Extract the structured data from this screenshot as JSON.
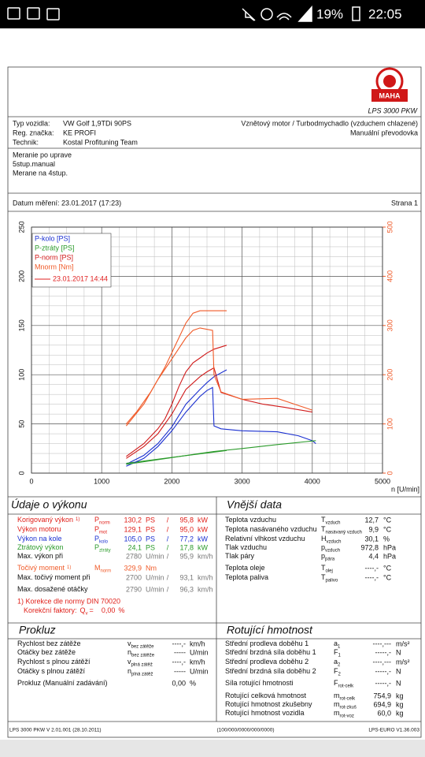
{
  "status_bar": {
    "battery": "19%",
    "time": "22:05"
  },
  "header": {
    "logo_text": "MAHA",
    "product": "LPS 3000 PKW"
  },
  "vehicle": {
    "left": [
      [
        "Typ vozidla:",
        "VW Golf 1,9TDi 90PS"
      ],
      [
        "Reg. značka:",
        "KE PROFI"
      ],
      [
        "Technik:",
        "Kostal Profituning Team"
      ]
    ],
    "right": [
      "Vznětový motor / Turbodmychadlo (vzduchem chlazené)",
      "Manuální převodovka"
    ]
  },
  "notes": [
    "Meranie po uprave",
    "5stup.manual",
    "Merane na 4stup."
  ],
  "measurement": {
    "date": "Datum měření: 23.01.2017 (17:23)",
    "page": "Strana 1"
  },
  "chart_data": {
    "type": "line",
    "xlabel": "n [U/min]",
    "xlim": [
      0,
      5000
    ],
    "xticks": [
      0,
      1000,
      2000,
      3000,
      4000,
      5000
    ],
    "ylim": [
      0,
      250
    ],
    "yticks": [
      0,
      50,
      100,
      150,
      200,
      250
    ],
    "y2lim": [
      0,
      500
    ],
    "y2ticks": [
      0,
      100,
      200,
      300,
      400,
      500
    ],
    "y2color": "#f05a28",
    "grid": true,
    "minor_grid": {
      "x": 4,
      "y": 5
    },
    "legend": "upper left",
    "legend_run": {
      "label": "23.01.2017 14:44",
      "color": "#e02020"
    },
    "series": [
      {
        "name": "P-kolo [PS]",
        "color": "#1a2fd0",
        "x": [
          1350,
          1600,
          1800,
          2000,
          2200,
          2400,
          2500,
          2600,
          2780
        ],
        "values": [
          9,
          18,
          30,
          47,
          70,
          85,
          92,
          98,
          105
        ]
      },
      {
        "name": "P-ztráty [PS]",
        "color": "#2a9a2a",
        "x": [
          1350,
          2000,
          2780
        ],
        "values": [
          10,
          16,
          23
        ]
      },
      {
        "name": "P-norm [PS]",
        "color": "#d01818",
        "x": [
          1350,
          1600,
          1800,
          1900,
          2000,
          2100,
          2200,
          2300,
          2400,
          2500,
          2600,
          2780
        ],
        "values": [
          17,
          30,
          45,
          55,
          70,
          88,
          103,
          112,
          117,
          122,
          126,
          130
        ]
      },
      {
        "name": "Mnorm [Nm]",
        "color": "#f05a28",
        "axis": "y2",
        "x": [
          1350,
          1500,
          1700,
          1900,
          2000,
          2100,
          2200,
          2300,
          2400,
          2600,
          2780
        ],
        "values": [
          100,
          125,
          165,
          215,
          245,
          275,
          305,
          325,
          330,
          330,
          330
        ]
      },
      {
        "color": "#1a2fd0",
        "x": [
          1350,
          1600,
          1800,
          2000,
          2200,
          2400,
          2500,
          2580,
          2600,
          2700,
          3000,
          3500,
          3800,
          4000,
          4050
        ],
        "values": [
          7,
          15,
          27,
          43,
          62,
          78,
          84,
          87,
          48,
          45,
          43,
          42,
          38,
          33,
          30
        ]
      },
      {
        "color": "#2a9a2a",
        "x": [
          1350,
          2600,
          3000,
          3500,
          4050
        ],
        "values": [
          9,
          22,
          25,
          29,
          33
        ]
      },
      {
        "color": "#d01818",
        "x": [
          1350,
          1600,
          1800,
          2000,
          2200,
          2400,
          2500,
          2600,
          2700,
          3000,
          3300,
          3600,
          4000
        ],
        "values": [
          15,
          27,
          40,
          60,
          85,
          98,
          103,
          107,
          82,
          75,
          70,
          67,
          62
        ]
      },
      {
        "color": "#f05a28",
        "axis": "y2",
        "x": [
          1350,
          1600,
          1800,
          2000,
          2200,
          2300,
          2400,
          2580,
          2600,
          2700,
          3000,
          3500,
          4000
        ],
        "values": [
          96,
          140,
          190,
          232,
          275,
          290,
          295,
          290,
          200,
          165,
          150,
          152,
          128
        ]
      }
    ]
  },
  "panels": [
    {
      "title": "Údaje o výkonu",
      "rows": [
        {
          "label": "Korigovaný výkon",
          "note": "1)",
          "symbol": [
            "P",
            "norm"
          ],
          "cells": [
            "130,2",
            "PS",
            "/",
            "95,8",
            "kW"
          ],
          "color": "#e0201a"
        },
        {
          "label": "Výkon motoru",
          "symbol": [
            "P",
            "mot"
          ],
          "cells": [
            "129,1",
            "PS",
            "/",
            "95,0",
            "kW"
          ],
          "color": "#e0201a"
        },
        {
          "label": "Výkon na kole",
          "symbol": [
            "P",
            "kolo"
          ],
          "cells": [
            "105,0",
            "PS",
            "/",
            "77,2",
            "kW"
          ],
          "color": "#1a2fd0"
        },
        {
          "label": "Ztrátový výkon",
          "symbol": [
            "P",
            "ztráty"
          ],
          "cells": [
            "24,1",
            "PS",
            "/",
            "17,8",
            "kW"
          ],
          "color": "#2a9a2a"
        },
        {
          "label": "Max. výkon při",
          "cells": [
            "2780",
            "U/min",
            "/",
            "95,9",
            "km/h"
          ],
          "value_color": "#777777"
        },
        {
          "label": "Točivý moment",
          "note": "1)",
          "symbol": [
            "M",
            "norm"
          ],
          "cells": [
            "329,9",
            "Nm"
          ],
          "color": "#f05a28"
        },
        {
          "label": "Max. točivý moment při",
          "cells": [
            "2700",
            "U/min",
            "/",
            "93,1",
            "km/h"
          ],
          "value_color": "#777777"
        },
        {
          "label": "Max. dosažené otáčky",
          "cells": [
            "2790",
            "U/min",
            "/",
            "96,3",
            "km/h"
          ],
          "value_color": "#777777"
        }
      ]
    },
    {
      "title": "Vnější data",
      "rows": [
        {
          "label": "Teplota vzduchu",
          "symbol": [
            "T",
            "vzduch"
          ],
          "cells": [
            "12,7",
            "°C"
          ]
        },
        {
          "label": "Teplota nasávaného vzduchu",
          "symbol": [
            "T",
            "nasávaný vzduch"
          ],
          "cells": [
            "9,9",
            "°C"
          ]
        },
        {
          "label": "Relativní vlhkost vzduchu",
          "symbol": [
            "H",
            "vzduch"
          ],
          "cells": [
            "30,1",
            "%"
          ]
        },
        {
          "label": "Tlak vzduchu",
          "symbol": [
            "p",
            "vzduch"
          ],
          "cells": [
            "972,8",
            "hPa"
          ]
        },
        {
          "label": "Tlak páry",
          "symbol": [
            "p",
            "pára"
          ],
          "cells": [
            "4,4",
            "hPa"
          ]
        },
        {
          "label": "Teplota oleje",
          "symbol": [
            "T",
            "olej"
          ],
          "cells": [
            "----,-",
            "°C"
          ]
        },
        {
          "label": "Teplota paliva",
          "symbol": [
            "T",
            "palivo"
          ],
          "cells": [
            "----,-",
            "°C"
          ]
        }
      ]
    },
    {
      "title": "Prokluz",
      "rows": [
        {
          "label": "Rychlost bez zátěže",
          "symbol": [
            "v",
            "bez zátěže"
          ],
          "cells": [
            "----,-",
            "km/h"
          ]
        },
        {
          "label": "Otáčky bez zátěže",
          "symbol": [
            "n",
            "bez zátěže"
          ],
          "cells": [
            "-----",
            "U/min"
          ]
        },
        {
          "label": "Rychlost s plnou zátěží",
          "symbol": [
            "v",
            "plná zátěž"
          ],
          "cells": [
            "----,-",
            "km/h"
          ]
        },
        {
          "label": "Otáčky s plnou zátěží",
          "symbol": [
            "n",
            "plná zátěž"
          ],
          "cells": [
            "-----",
            "U/min"
          ]
        },
        {
          "label": "Prokluz (Manuální zadávání)",
          "cells": [
            "0,00",
            "%"
          ]
        }
      ]
    },
    {
      "title": "Rotující hmotnost",
      "rows": [
        {
          "label": "Střední prodleva doběhu 1",
          "symbol": [
            "a",
            "1"
          ],
          "cells": [
            "----,---",
            "m/s²"
          ]
        },
        {
          "label": "Střední brzdná síla doběhu 1",
          "symbol": [
            "F",
            "1"
          ],
          "cells": [
            "-----,-",
            "N"
          ]
        },
        {
          "label": "Střední prodleva doběhu 2",
          "symbol": [
            "a",
            "2"
          ],
          "cells": [
            "----,---",
            "m/s²"
          ]
        },
        {
          "label": "Střední brzdná síla doběhu 2",
          "symbol": [
            "F",
            "2"
          ],
          "cells": [
            "-----,-",
            "N"
          ]
        },
        {
          "label": "Síla rotující hmotnosti",
          "symbol": [
            "F",
            "rot-celk"
          ],
          "cells": [
            "-----,-",
            "N"
          ]
        },
        {
          "label": "Rotující celková hmotnost",
          "symbol": [
            "m",
            "rot-celk"
          ],
          "cells": [
            "754,9",
            "kg"
          ]
        },
        {
          "label": "Rotující hmotnost zkušebny",
          "symbol": [
            "m",
            "rot-zkuš"
          ],
          "cells": [
            "694,9",
            "kg"
          ]
        },
        {
          "label": "Rotující hmotnost vozidla",
          "symbol": [
            "m",
            "rot-voz"
          ],
          "cells": [
            "60,0",
            "kg"
          ]
        }
      ]
    }
  ],
  "footnote": {
    "correction": "1) Korekce dle normy DIN 70020",
    "factor_label": "Korekční faktory:",
    "factor_symbol": [
      "Q",
      "v"
    ],
    "factor_eq": "=",
    "factor_value": "0,00",
    "factor_unit": "%",
    "color": "#e0201a"
  },
  "footer": {
    "left": "LPS 3000 PKW V 2.01.001 (28.10.2011)",
    "center": "(100/000/0000/000/0000)",
    "right": "LPS-EURO V1.36.003"
  }
}
